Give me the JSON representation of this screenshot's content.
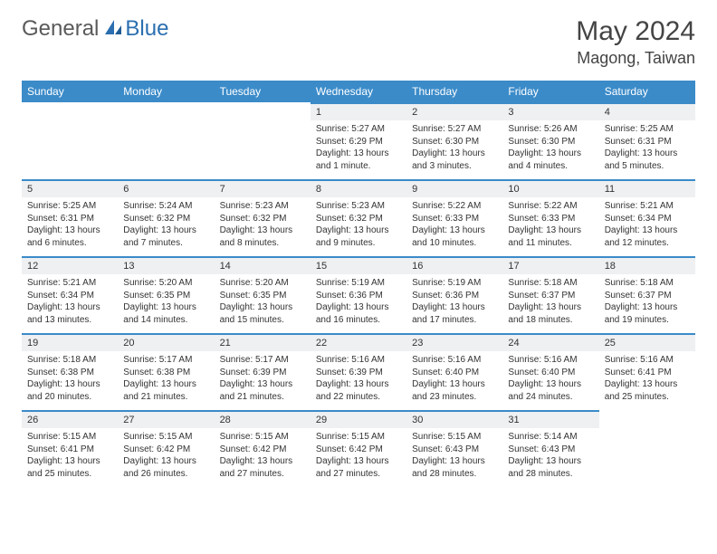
{
  "logo": {
    "general": "General",
    "blue": "Blue"
  },
  "title": "May 2024",
  "location": "Magong, Taiwan",
  "daysOfWeek": [
    "Sunday",
    "Monday",
    "Tuesday",
    "Wednesday",
    "Thursday",
    "Friday",
    "Saturday"
  ],
  "header_bg": "#3b8bc9",
  "day_header_bg": "#eef0f2",
  "day_border_color": "#3b8bc9",
  "weeks": [
    [
      null,
      null,
      null,
      {
        "n": "1",
        "sr": "5:27 AM",
        "ss": "6:29 PM",
        "dl": "13 hours and 1 minute."
      },
      {
        "n": "2",
        "sr": "5:27 AM",
        "ss": "6:30 PM",
        "dl": "13 hours and 3 minutes."
      },
      {
        "n": "3",
        "sr": "5:26 AM",
        "ss": "6:30 PM",
        "dl": "13 hours and 4 minutes."
      },
      {
        "n": "4",
        "sr": "5:25 AM",
        "ss": "6:31 PM",
        "dl": "13 hours and 5 minutes."
      }
    ],
    [
      {
        "n": "5",
        "sr": "5:25 AM",
        "ss": "6:31 PM",
        "dl": "13 hours and 6 minutes."
      },
      {
        "n": "6",
        "sr": "5:24 AM",
        "ss": "6:32 PM",
        "dl": "13 hours and 7 minutes."
      },
      {
        "n": "7",
        "sr": "5:23 AM",
        "ss": "6:32 PM",
        "dl": "13 hours and 8 minutes."
      },
      {
        "n": "8",
        "sr": "5:23 AM",
        "ss": "6:32 PM",
        "dl": "13 hours and 9 minutes."
      },
      {
        "n": "9",
        "sr": "5:22 AM",
        "ss": "6:33 PM",
        "dl": "13 hours and 10 minutes."
      },
      {
        "n": "10",
        "sr": "5:22 AM",
        "ss": "6:33 PM",
        "dl": "13 hours and 11 minutes."
      },
      {
        "n": "11",
        "sr": "5:21 AM",
        "ss": "6:34 PM",
        "dl": "13 hours and 12 minutes."
      }
    ],
    [
      {
        "n": "12",
        "sr": "5:21 AM",
        "ss": "6:34 PM",
        "dl": "13 hours and 13 minutes."
      },
      {
        "n": "13",
        "sr": "5:20 AM",
        "ss": "6:35 PM",
        "dl": "13 hours and 14 minutes."
      },
      {
        "n": "14",
        "sr": "5:20 AM",
        "ss": "6:35 PM",
        "dl": "13 hours and 15 minutes."
      },
      {
        "n": "15",
        "sr": "5:19 AM",
        "ss": "6:36 PM",
        "dl": "13 hours and 16 minutes."
      },
      {
        "n": "16",
        "sr": "5:19 AM",
        "ss": "6:36 PM",
        "dl": "13 hours and 17 minutes."
      },
      {
        "n": "17",
        "sr": "5:18 AM",
        "ss": "6:37 PM",
        "dl": "13 hours and 18 minutes."
      },
      {
        "n": "18",
        "sr": "5:18 AM",
        "ss": "6:37 PM",
        "dl": "13 hours and 19 minutes."
      }
    ],
    [
      {
        "n": "19",
        "sr": "5:18 AM",
        "ss": "6:38 PM",
        "dl": "13 hours and 20 minutes."
      },
      {
        "n": "20",
        "sr": "5:17 AM",
        "ss": "6:38 PM",
        "dl": "13 hours and 21 minutes."
      },
      {
        "n": "21",
        "sr": "5:17 AM",
        "ss": "6:39 PM",
        "dl": "13 hours and 21 minutes."
      },
      {
        "n": "22",
        "sr": "5:16 AM",
        "ss": "6:39 PM",
        "dl": "13 hours and 22 minutes."
      },
      {
        "n": "23",
        "sr": "5:16 AM",
        "ss": "6:40 PM",
        "dl": "13 hours and 23 minutes."
      },
      {
        "n": "24",
        "sr": "5:16 AM",
        "ss": "6:40 PM",
        "dl": "13 hours and 24 minutes."
      },
      {
        "n": "25",
        "sr": "5:16 AM",
        "ss": "6:41 PM",
        "dl": "13 hours and 25 minutes."
      }
    ],
    [
      {
        "n": "26",
        "sr": "5:15 AM",
        "ss": "6:41 PM",
        "dl": "13 hours and 25 minutes."
      },
      {
        "n": "27",
        "sr": "5:15 AM",
        "ss": "6:42 PM",
        "dl": "13 hours and 26 minutes."
      },
      {
        "n": "28",
        "sr": "5:15 AM",
        "ss": "6:42 PM",
        "dl": "13 hours and 27 minutes."
      },
      {
        "n": "29",
        "sr": "5:15 AM",
        "ss": "6:42 PM",
        "dl": "13 hours and 27 minutes."
      },
      {
        "n": "30",
        "sr": "5:15 AM",
        "ss": "6:43 PM",
        "dl": "13 hours and 28 minutes."
      },
      {
        "n": "31",
        "sr": "5:14 AM",
        "ss": "6:43 PM",
        "dl": "13 hours and 28 minutes."
      },
      null
    ]
  ],
  "labels": {
    "sunrise": "Sunrise: ",
    "sunset": "Sunset: ",
    "daylight": "Daylight: "
  }
}
